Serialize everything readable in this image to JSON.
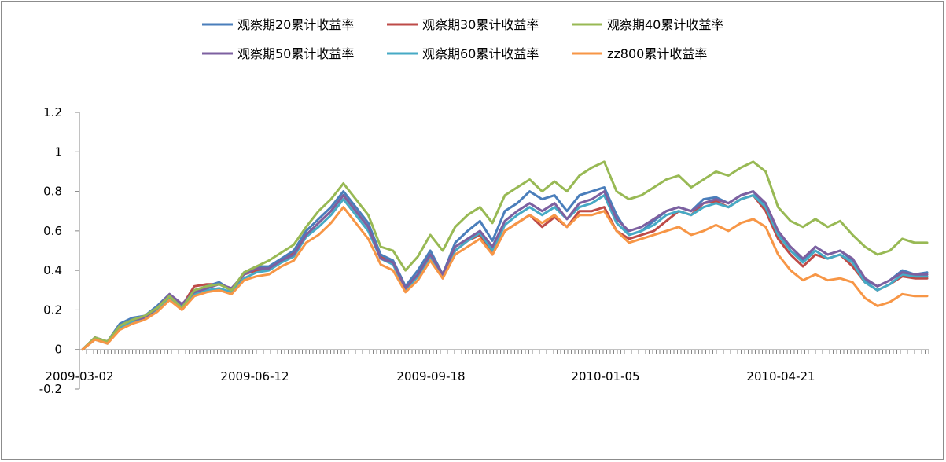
{
  "chart_data": {
    "type": "line",
    "title": "",
    "xlabel": "",
    "ylabel": "",
    "ylim": [
      -0.2,
      1.2
    ],
    "yticks": [
      -0.2,
      0,
      0.2,
      0.4,
      0.6,
      0.8,
      1,
      1.2
    ],
    "ytick_labels": [
      "-0.2",
      "0",
      "0.2",
      "0.4",
      "0.6",
      "0.8",
      "1",
      "1.2"
    ],
    "xtick_labels": [
      "2009-03-02",
      "2009-06-12",
      "2009-09-18",
      "2010-01-05",
      "2010-04-21"
    ],
    "legend_position": "top",
    "grid": false,
    "x": [
      "2009-03-02",
      "2009-03-09",
      "2009-03-16",
      "2009-03-23",
      "2009-03-30",
      "2009-04-06",
      "2009-04-13",
      "2009-04-20",
      "2009-04-27",
      "2009-05-04",
      "2009-05-11",
      "2009-05-18",
      "2009-05-25",
      "2009-06-01",
      "2009-06-08",
      "2009-06-15",
      "2009-06-22",
      "2009-06-29",
      "2009-07-06",
      "2009-07-13",
      "2009-07-20",
      "2009-07-27",
      "2009-08-03",
      "2009-08-10",
      "2009-08-17",
      "2009-08-24",
      "2009-08-31",
      "2009-09-07",
      "2009-09-14",
      "2009-09-21",
      "2009-09-28",
      "2009-10-12",
      "2009-10-19",
      "2009-10-26",
      "2009-11-02",
      "2009-11-09",
      "2009-11-16",
      "2009-11-23",
      "2009-11-30",
      "2009-12-07",
      "2009-12-14",
      "2009-12-21",
      "2009-12-28",
      "2010-01-04",
      "2010-01-11",
      "2010-01-18",
      "2010-01-25",
      "2010-02-01",
      "2010-02-08",
      "2010-02-22",
      "2010-03-01",
      "2010-03-08",
      "2010-03-15",
      "2010-03-22",
      "2010-03-29",
      "2010-04-06",
      "2010-04-12",
      "2010-04-19",
      "2010-04-26",
      "2010-05-04",
      "2010-05-10",
      "2010-05-17",
      "2010-05-24",
      "2010-05-31",
      "2010-06-07",
      "2010-06-14",
      "2010-06-21",
      "2010-06-28",
      "2010-07-05"
    ],
    "colors": [
      "#4a7ebb",
      "#be4b48",
      "#98b954",
      "#7d60a0",
      "#46aac5",
      "#f79646"
    ],
    "series": [
      {
        "name": "观察期20累计收益率",
        "values": [
          0.0,
          0.06,
          0.04,
          0.13,
          0.16,
          0.17,
          0.22,
          0.28,
          0.22,
          0.3,
          0.32,
          0.34,
          0.3,
          0.39,
          0.42,
          0.42,
          0.46,
          0.5,
          0.6,
          0.66,
          0.72,
          0.8,
          0.72,
          0.64,
          0.48,
          0.45,
          0.32,
          0.4,
          0.5,
          0.38,
          0.54,
          0.6,
          0.65,
          0.55,
          0.7,
          0.74,
          0.8,
          0.76,
          0.78,
          0.7,
          0.78,
          0.8,
          0.82,
          0.68,
          0.58,
          0.6,
          0.65,
          0.7,
          0.72,
          0.7,
          0.76,
          0.77,
          0.74,
          0.78,
          0.8,
          0.72,
          0.6,
          0.5,
          0.45,
          0.52,
          0.48,
          0.5,
          0.45,
          0.35,
          0.32,
          0.35,
          0.4,
          0.38,
          0.39
        ]
      },
      {
        "name": "观察期30累计收益率",
        "values": [
          0.0,
          0.06,
          0.04,
          0.12,
          0.15,
          0.17,
          0.21,
          0.27,
          0.22,
          0.32,
          0.33,
          0.33,
          0.3,
          0.38,
          0.4,
          0.41,
          0.45,
          0.49,
          0.58,
          0.64,
          0.7,
          0.78,
          0.7,
          0.62,
          0.47,
          0.44,
          0.3,
          0.38,
          0.47,
          0.36,
          0.5,
          0.55,
          0.58,
          0.48,
          0.6,
          0.64,
          0.68,
          0.62,
          0.67,
          0.62,
          0.7,
          0.7,
          0.72,
          0.6,
          0.56,
          0.58,
          0.6,
          0.65,
          0.7,
          0.68,
          0.74,
          0.75,
          0.72,
          0.76,
          0.78,
          0.7,
          0.56,
          0.48,
          0.42,
          0.48,
          0.46,
          0.48,
          0.42,
          0.34,
          0.3,
          0.33,
          0.37,
          0.36,
          0.36
        ]
      },
      {
        "name": "观察期40累计收益率",
        "values": [
          0.0,
          0.06,
          0.04,
          0.12,
          0.15,
          0.17,
          0.21,
          0.27,
          0.21,
          0.3,
          0.32,
          0.33,
          0.3,
          0.39,
          0.42,
          0.45,
          0.49,
          0.53,
          0.62,
          0.7,
          0.76,
          0.84,
          0.76,
          0.68,
          0.52,
          0.5,
          0.4,
          0.47,
          0.58,
          0.5,
          0.62,
          0.68,
          0.72,
          0.64,
          0.78,
          0.82,
          0.86,
          0.8,
          0.85,
          0.8,
          0.88,
          0.92,
          0.95,
          0.8,
          0.76,
          0.78,
          0.82,
          0.86,
          0.88,
          0.82,
          0.86,
          0.9,
          0.88,
          0.92,
          0.95,
          0.9,
          0.72,
          0.65,
          0.62,
          0.66,
          0.62,
          0.65,
          0.58,
          0.52,
          0.48,
          0.5,
          0.56,
          0.54,
          0.54
        ]
      },
      {
        "name": "观察期50累计收益率",
        "values": [
          0.0,
          0.06,
          0.04,
          0.12,
          0.15,
          0.16,
          0.21,
          0.28,
          0.23,
          0.29,
          0.31,
          0.33,
          0.31,
          0.38,
          0.41,
          0.41,
          0.45,
          0.48,
          0.58,
          0.64,
          0.7,
          0.78,
          0.7,
          0.62,
          0.46,
          0.44,
          0.31,
          0.38,
          0.48,
          0.38,
          0.52,
          0.56,
          0.6,
          0.52,
          0.65,
          0.7,
          0.74,
          0.7,
          0.74,
          0.66,
          0.74,
          0.76,
          0.8,
          0.66,
          0.6,
          0.62,
          0.66,
          0.7,
          0.72,
          0.7,
          0.74,
          0.76,
          0.74,
          0.78,
          0.8,
          0.74,
          0.6,
          0.52,
          0.46,
          0.52,
          0.48,
          0.5,
          0.46,
          0.36,
          0.32,
          0.35,
          0.39,
          0.38,
          0.38
        ]
      },
      {
        "name": "观察期60累计收益率",
        "values": [
          0.0,
          0.05,
          0.03,
          0.11,
          0.14,
          0.16,
          0.2,
          0.26,
          0.21,
          0.28,
          0.3,
          0.31,
          0.29,
          0.36,
          0.39,
          0.4,
          0.44,
          0.47,
          0.57,
          0.62,
          0.68,
          0.76,
          0.68,
          0.6,
          0.46,
          0.43,
          0.3,
          0.37,
          0.47,
          0.37,
          0.5,
          0.55,
          0.59,
          0.5,
          0.63,
          0.68,
          0.72,
          0.68,
          0.72,
          0.66,
          0.72,
          0.74,
          0.78,
          0.64,
          0.58,
          0.6,
          0.63,
          0.68,
          0.7,
          0.68,
          0.72,
          0.74,
          0.72,
          0.76,
          0.78,
          0.72,
          0.58,
          0.5,
          0.44,
          0.5,
          0.46,
          0.48,
          0.44,
          0.34,
          0.3,
          0.33,
          0.38,
          0.37,
          0.37
        ]
      },
      {
        "name": "zz800累计收益率",
        "values": [
          0.0,
          0.05,
          0.03,
          0.1,
          0.13,
          0.15,
          0.19,
          0.25,
          0.2,
          0.27,
          0.29,
          0.3,
          0.28,
          0.35,
          0.37,
          0.38,
          0.42,
          0.45,
          0.54,
          0.58,
          0.64,
          0.72,
          0.64,
          0.56,
          0.43,
          0.4,
          0.29,
          0.35,
          0.45,
          0.36,
          0.48,
          0.52,
          0.56,
          0.48,
          0.6,
          0.64,
          0.68,
          0.64,
          0.68,
          0.62,
          0.68,
          0.68,
          0.7,
          0.6,
          0.54,
          0.56,
          0.58,
          0.6,
          0.62,
          0.58,
          0.6,
          0.63,
          0.6,
          0.64,
          0.66,
          0.62,
          0.48,
          0.4,
          0.35,
          0.38,
          0.35,
          0.36,
          0.34,
          0.26,
          0.22,
          0.24,
          0.28,
          0.27,
          0.27
        ]
      }
    ]
  }
}
